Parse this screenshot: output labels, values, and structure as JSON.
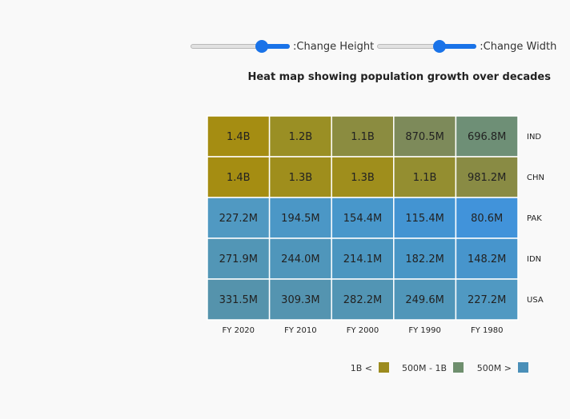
{
  "controls": {
    "height_label": ":Change Height",
    "width_label": ":Change Width",
    "height_value": 0.75,
    "width_value": 0.65
  },
  "chart_data": {
    "type": "heatmap",
    "title": "Heat map showing population growth over decades",
    "x_categories": [
      "FY 2020",
      "FY 2010",
      "FY 2000",
      "FY 1990",
      "FY 1980"
    ],
    "y_categories": [
      "IND",
      "CHN",
      "PAK",
      "IDN",
      "USA"
    ],
    "values": [
      [
        1400000000.0,
        1200000000.0,
        1100000000.0,
        870500000.0,
        696800000.0
      ],
      [
        1400000000.0,
        1300000000.0,
        1300000000.0,
        1100000000.0,
        981200000.0
      ],
      [
        227200000.0,
        194500000.0,
        154400000.0,
        115400000.0,
        80600000.0
      ],
      [
        271900000.0,
        244000000.0,
        214100000.0,
        182200000.0,
        148200000.0
      ],
      [
        331500000.0,
        309300000.0,
        282200000.0,
        249600000.0,
        227200000.0
      ]
    ],
    "labels": [
      [
        "1.4B",
        "1.2B",
        "1.1B",
        "870.5M",
        "696.8M"
      ],
      [
        "1.4B",
        "1.3B",
        "1.3B",
        "1.1B",
        "981.2M"
      ],
      [
        "227.2M",
        "194.5M",
        "154.4M",
        "115.4M",
        "80.6M"
      ],
      [
        "271.9M",
        "244.0M",
        "214.1M",
        "182.2M",
        "148.2M"
      ],
      [
        "331.5M",
        "309.3M",
        "282.2M",
        "249.6M",
        "227.2M"
      ]
    ],
    "cell_colors": [
      [
        "#a58d12",
        "#9a8f24",
        "#8b8c40",
        "#7d8a5a",
        "#6e8f76"
      ],
      [
        "#a58d12",
        "#9f8e1c",
        "#9f8e1c",
        "#948e30",
        "#898b44"
      ],
      [
        "#5099c2",
        "#4b97c6",
        "#4897cb",
        "#4394d2",
        "#4193da"
      ],
      [
        "#5296b6",
        "#4f96bb",
        "#4b96c0",
        "#4896c6",
        "#4795cc"
      ],
      [
        "#5593ac",
        "#5494b0",
        "#5295b4",
        "#5096b9",
        "#5099c2"
      ]
    ],
    "legend": [
      {
        "label": "1B <",
        "color": "#9c8b1e"
      },
      {
        "label": "500M - 1B",
        "color": "#6f8f6e"
      },
      {
        "label": "500M >",
        "color": "#4a8fb8"
      }
    ],
    "legend_position": "bottom-right"
  }
}
